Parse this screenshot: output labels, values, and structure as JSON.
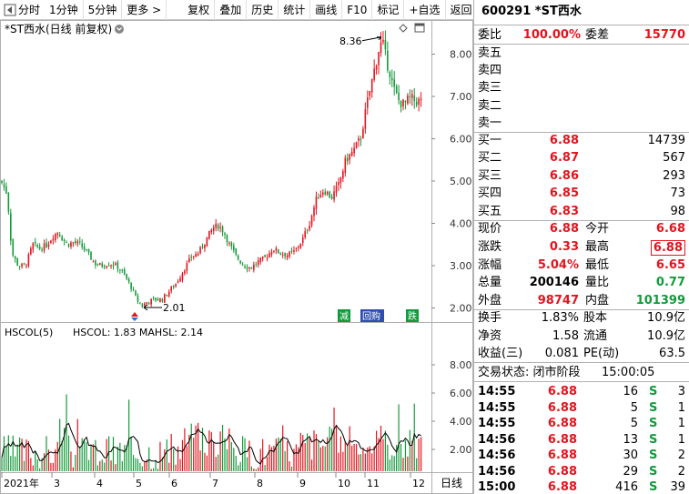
{
  "toolbar": {
    "items": [
      "分时",
      "1分钟",
      "5分钟",
      "更多 >",
      "复权",
      "叠加",
      "历史",
      "统计",
      "画线",
      "F10",
      "标记",
      "+自选",
      "返回"
    ]
  },
  "chart": {
    "title": "*ST西水(日线 前复权)",
    "high_label": "8.36",
    "low_label": "2.01",
    "y_ticks": [
      "8.00",
      "7.00",
      "6.00",
      "5.00",
      "4.00",
      "3.00",
      "2.00"
    ],
    "badges": [
      "减",
      "回购",
      "跌"
    ],
    "indicator_title": "HSCOL(5)",
    "indicator_values": "HSCOL: 1.83  MAHSL: 2.14",
    "indicator_ticks": [
      "8.00",
      "6.00",
      "4.00",
      "2.00"
    ],
    "x_labels": [
      "2021年",
      "3",
      "4",
      "5",
      "6",
      "7",
      "8",
      "9",
      "10",
      "11",
      "12"
    ],
    "period_label": "日线",
    "colors": {
      "up": "#e3141e",
      "down": "#139a3b",
      "ma": "#000000"
    }
  },
  "chart_data": {
    "type": "candlestick",
    "title": "*ST西水(日线 前复权)",
    "ylim": [
      1.9,
      8.7
    ],
    "y_ticks": [
      2,
      3,
      4,
      5,
      6,
      7,
      8
    ],
    "x_labels": [
      "2021年",
      "3",
      "4",
      "5",
      "6",
      "7",
      "8",
      "9",
      "10",
      "11",
      "12"
    ],
    "close_path": [
      [
        1,
        5.0
      ],
      [
        8,
        4.7
      ],
      [
        13,
        3.3
      ],
      [
        20,
        3.0
      ],
      [
        28,
        3.0
      ],
      [
        36,
        3.5
      ],
      [
        44,
        3.4
      ],
      [
        52,
        3.5
      ],
      [
        58,
        3.7
      ],
      [
        64,
        3.8
      ],
      [
        68,
        3.65
      ],
      [
        74,
        3.5
      ],
      [
        80,
        3.55
      ],
      [
        88,
        3.5
      ],
      [
        96,
        3.3
      ],
      [
        104,
        3.05
      ],
      [
        112,
        3.0
      ],
      [
        120,
        3.05
      ],
      [
        128,
        3.0
      ],
      [
        136,
        2.8
      ],
      [
        144,
        2.5
      ],
      [
        150,
        2.2
      ],
      [
        156,
        2.05
      ],
      [
        162,
        2.15
      ],
      [
        170,
        2.2
      ],
      [
        178,
        2.2
      ],
      [
        186,
        2.4
      ],
      [
        194,
        2.6
      ],
      [
        202,
        2.9
      ],
      [
        210,
        3.2
      ],
      [
        218,
        3.3
      ],
      [
        226,
        3.6
      ],
      [
        234,
        3.9
      ],
      [
        240,
        3.95
      ],
      [
        246,
        3.8
      ],
      [
        252,
        3.5
      ],
      [
        260,
        3.2
      ],
      [
        268,
        3.0
      ],
      [
        276,
        2.95
      ],
      [
        284,
        3.1
      ],
      [
        292,
        3.2
      ],
      [
        300,
        3.4
      ],
      [
        308,
        3.3
      ],
      [
        316,
        3.25
      ],
      [
        324,
        3.35
      ],
      [
        332,
        3.6
      ],
      [
        340,
        4.0
      ],
      [
        348,
        4.6
      ],
      [
        356,
        4.8
      ],
      [
        364,
        4.6
      ],
      [
        372,
        4.9
      ],
      [
        380,
        5.5
      ],
      [
        388,
        5.7
      ],
      [
        396,
        6.0
      ],
      [
        404,
        6.9
      ],
      [
        410,
        7.5
      ],
      [
        416,
        8.1
      ],
      [
        420,
        8.3
      ],
      [
        424,
        7.9
      ],
      [
        428,
        7.6
      ],
      [
        432,
        7.2
      ],
      [
        438,
        6.9
      ],
      [
        444,
        6.8
      ],
      [
        450,
        6.95
      ],
      [
        456,
        6.9
      ],
      [
        462,
        6.88
      ]
    ],
    "high": 8.36,
    "low": 2.01,
    "last_close": 6.88,
    "indicator": {
      "name": "HSCOL(5)",
      "HSCOL": 1.83,
      "MAHSL": 2.14,
      "ylim": [
        0,
        10
      ],
      "y_ticks": [
        2,
        4,
        6,
        8
      ]
    }
  },
  "quote": {
    "code": "600291",
    "name": "*ST西水",
    "weibi_label": "委比",
    "weibi": "100.00%",
    "weicha_label": "委差",
    "weicha": "15770",
    "asks": [
      {
        "label": "卖五"
      },
      {
        "label": "卖四"
      },
      {
        "label": "卖三"
      },
      {
        "label": "卖二"
      },
      {
        "label": "卖一"
      }
    ],
    "bids": [
      {
        "label": "买一",
        "price": "6.88",
        "vol": "14739"
      },
      {
        "label": "买二",
        "price": "6.87",
        "vol": "567"
      },
      {
        "label": "买三",
        "price": "6.86",
        "vol": "293"
      },
      {
        "label": "买四",
        "price": "6.85",
        "vol": "73"
      },
      {
        "label": "买五",
        "price": "6.83",
        "vol": "98"
      }
    ],
    "stats": [
      {
        "l1": "现价",
        "v1": "6.88",
        "c1": "red",
        "l2": "今开",
        "v2": "6.68",
        "c2": "red"
      },
      {
        "l1": "涨跌",
        "v1": "0.33",
        "c1": "red",
        "l2": "最高",
        "v2": "6.88",
        "c2": "red",
        "box2": true
      },
      {
        "l1": "涨幅",
        "v1": "5.04%",
        "c1": "red",
        "l2": "最低",
        "v2": "6.65",
        "c2": "red"
      },
      {
        "l1": "总量",
        "v1": "200146",
        "c1": "blk",
        "l2": "量比",
        "v2": "0.77",
        "c2": "green"
      },
      {
        "l1": "外盘",
        "v1": "98747",
        "c1": "red",
        "l2": "内盘",
        "v2": "101399",
        "c2": "green"
      }
    ],
    "fin": [
      {
        "l1": "换手",
        "v1": "1.83%",
        "l2": "股本",
        "v2": "10.9亿"
      },
      {
        "l1": "净资",
        "v1": "1.58",
        "l2": "流通",
        "v2": "10.9亿"
      },
      {
        "l1": "收益(三)",
        "v1": "0.081",
        "l2": "PE(动)",
        "v2": "63.5"
      }
    ],
    "trade_status": "交易状态: 闭市阶段",
    "trade_time": "15:00:05",
    "ticks": [
      {
        "t": "14:55",
        "p": "6.88",
        "v": "16",
        "s": "S",
        "n": "3"
      },
      {
        "t": "14:55",
        "p": "6.88",
        "v": "5",
        "s": "S",
        "n": "1"
      },
      {
        "t": "14:55",
        "p": "6.88",
        "v": "5",
        "s": "S",
        "n": "1"
      },
      {
        "t": "14:56",
        "p": "6.88",
        "v": "13",
        "s": "S",
        "n": "1"
      },
      {
        "t": "14:56",
        "p": "6.88",
        "v": "30",
        "s": "S",
        "n": "2"
      },
      {
        "t": "14:56",
        "p": "6.88",
        "v": "29",
        "s": "S",
        "n": "2"
      },
      {
        "t": "15:00",
        "p": "6.88",
        "v": "416",
        "s": "S",
        "n": "39"
      }
    ]
  }
}
